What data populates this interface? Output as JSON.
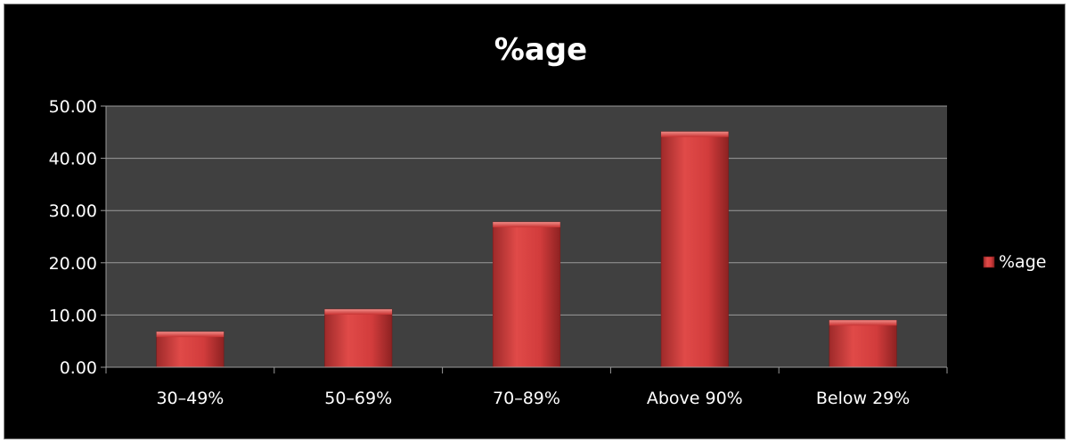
{
  "chart_data": {
    "type": "bar",
    "title": "%age",
    "categories": [
      "30–49%",
      "50–69%",
      "70–89%",
      "Above 90%",
      "Below 29%"
    ],
    "series": [
      {
        "name": "%age",
        "values": [
          6.8,
          11.1,
          27.8,
          45.1,
          9.0
        ]
      }
    ],
    "ylim": [
      0,
      50
    ],
    "yticks": [
      "0.00",
      "10.00",
      "20.00",
      "30.00",
      "40.00",
      "50.00"
    ],
    "grid": true,
    "legend_position": "right",
    "colors": {
      "background": "#000000",
      "plot_area": "#404040",
      "bar": "#d23c3c",
      "gridline": "#9a9a9a",
      "text": "#ffffff"
    }
  }
}
